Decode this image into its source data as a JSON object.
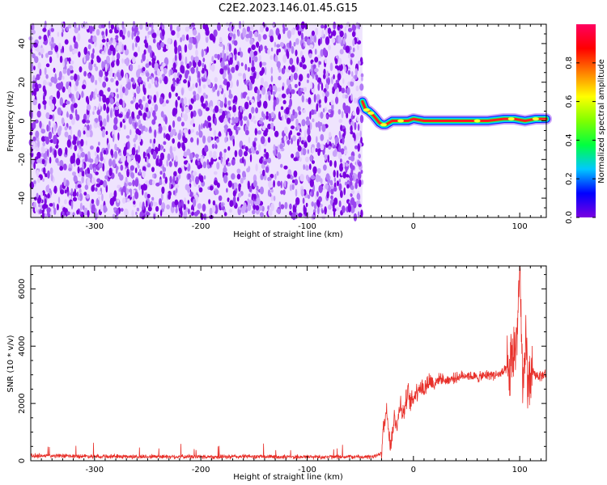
{
  "figure": {
    "title": "C2E2.2023.146.01.45.G15"
  },
  "chart_data": [
    {
      "type": "heatmap",
      "title": "C2E2.2023.146.01.45.G15",
      "xlabel": "Height of straight line (km)",
      "ylabel": "Frequency (Hz)",
      "xlim": [
        -360,
        125
      ],
      "ylim": [
        -50,
        50
      ],
      "x_ticks": [
        -300,
        -200,
        -100,
        0,
        100
      ],
      "x_tick_labels": [
        "-300",
        "-200",
        "-100",
        "0",
        "100"
      ],
      "y_ticks": [
        -40,
        -20,
        0,
        20,
        40
      ],
      "y_tick_labels": [
        "-40",
        "-20",
        "0",
        "20",
        "40"
      ],
      "noise_region_x": [
        -360,
        -48
      ],
      "noise_colors": [
        "#7a00e0",
        "#9a44ef",
        "#b27bf5",
        "#caa3fa",
        "#e3cdfd"
      ],
      "signal_track": {
        "x": [
          -48,
          -45,
          -42,
          -38,
          -35,
          -32,
          -29,
          -26,
          -23,
          -20,
          -15,
          -10,
          -5,
          0,
          10,
          30,
          50,
          70,
          85,
          95,
          105,
          115,
          125
        ],
        "freq_hz": [
          10,
          6,
          5,
          3,
          1,
          -1,
          -2,
          -2,
          -1,
          0,
          0,
          0,
          0,
          1,
          0,
          0,
          0,
          0,
          1,
          1,
          0,
          1,
          1
        ]
      },
      "colorbar": {
        "label": "Normalized spectral amplitude",
        "range": [
          0,
          1
        ],
        "ticks": [
          0.0,
          0.2,
          0.4,
          0.6,
          0.8
        ],
        "tick_labels": [
          "0.0",
          "0.2",
          "0.4",
          "0.6",
          "0.8"
        ],
        "colors": [
          "#7a00e0",
          "#0000ff",
          "#00c8ff",
          "#00ff40",
          "#80ff00",
          "#ffff00",
          "#ff8000",
          "#ff0000",
          "#ff0060"
        ]
      }
    },
    {
      "type": "line",
      "xlabel": "Height of straight line (km)",
      "ylabel": "SNR (10 * v/v)",
      "xlim": [
        -360,
        125
      ],
      "ylim": [
        0,
        6800
      ],
      "x_ticks": [
        -300,
        -200,
        -100,
        0,
        100
      ],
      "x_tick_labels": [
        "-300",
        "-200",
        "-100",
        "0",
        "100"
      ],
      "y_ticks": [
        0,
        2000,
        4000,
        6000
      ],
      "y_tick_labels": [
        "0",
        "2000",
        "4000",
        "6000"
      ],
      "color": "#e8302a",
      "series": [
        {
          "x": [
            -360,
            -340,
            -320,
            -300,
            -280,
            -260,
            -240,
            -220,
            -200,
            -180,
            -160,
            -140,
            -120,
            -100,
            -80,
            -60,
            -40,
            -35,
            -30,
            -28,
            -25,
            -22,
            -20,
            -18,
            -15,
            -12,
            -10,
            -8,
            -5,
            -3,
            0,
            5,
            10,
            15,
            20,
            25,
            30,
            40,
            50,
            60,
            70,
            80,
            85,
            88,
            90,
            92,
            94,
            96,
            98,
            100,
            102,
            104,
            106,
            108,
            110,
            115,
            120,
            125
          ],
          "y": [
            180,
            170,
            160,
            160,
            150,
            140,
            150,
            140,
            140,
            130,
            150,
            140,
            130,
            140,
            130,
            140,
            130,
            160,
            300,
            1200,
            1800,
            600,
            900,
            1500,
            1300,
            2100,
            1600,
            1900,
            2400,
            2000,
            2200,
            2600,
            2500,
            2800,
            2700,
            2900,
            2800,
            2900,
            3000,
            2900,
            3000,
            3000,
            3100,
            3200,
            2900,
            3400,
            3700,
            4000,
            4800,
            6700,
            3600,
            2400,
            4300,
            2300,
            3100,
            3000,
            2950,
            3050
          ]
        }
      ]
    }
  ]
}
